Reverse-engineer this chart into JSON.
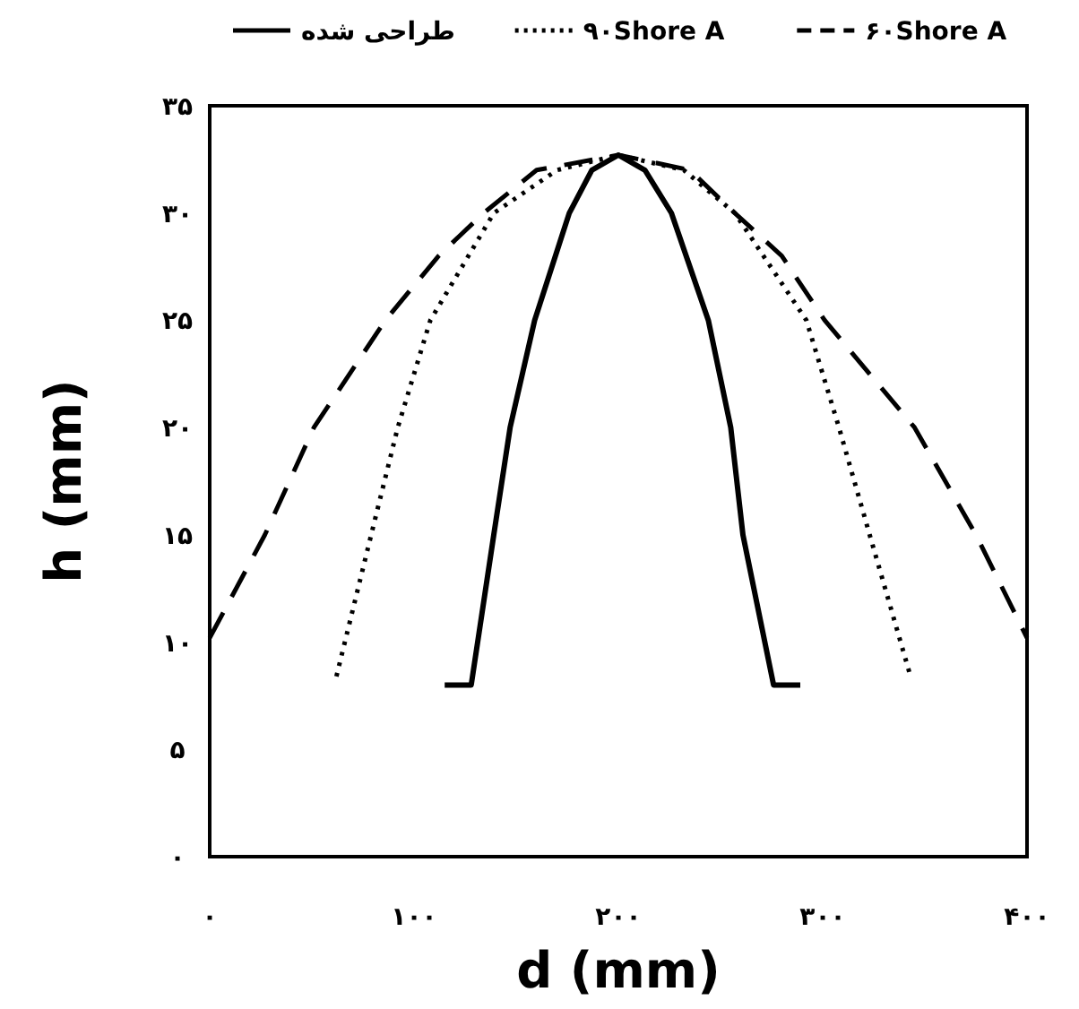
{
  "chart_data": {
    "type": "line",
    "xlabel": "d (mm)",
    "ylabel": "h (mm)",
    "xlim": [
      0,
      400
    ],
    "ylim": [
      0,
      35
    ],
    "xticks": [
      {
        "value": 0,
        "label": "۰"
      },
      {
        "value": 100,
        "label": "۱۰۰"
      },
      {
        "value": 200,
        "label": "۲۰۰"
      },
      {
        "value": 300,
        "label": "۳۰۰"
      },
      {
        "value": 400,
        "label": "۴۰۰"
      }
    ],
    "yticks": [
      {
        "value": 0,
        "label": "۰"
      },
      {
        "value": 5,
        "label": "۵"
      },
      {
        "value": 10,
        "label": "۱۰"
      },
      {
        "value": 15,
        "label": "۱۵"
      },
      {
        "value": 20,
        "label": "۲۰"
      },
      {
        "value": 25,
        "label": "۲۵"
      },
      {
        "value": 30,
        "label": "۳۰"
      },
      {
        "value": 35,
        "label": "۳۵"
      }
    ],
    "grid": false,
    "legend": "top",
    "marker": "none",
    "series": [
      {
        "name": "طراحی شده",
        "color": "#000000",
        "line_style": "solid",
        "x": [
          115,
          128,
          139,
          147,
          159,
          176,
          187,
          200,
          213,
          226,
          244,
          255,
          261,
          276,
          289
        ],
        "values": [
          8,
          8,
          15,
          20,
          25,
          30,
          32,
          32.7,
          32,
          30,
          25,
          20,
          15,
          8,
          8
        ]
      },
      {
        "name": "۹۰Shore A",
        "color": "#000000",
        "line_style": "dotted",
        "x": [
          62,
          79,
          92,
          108,
          139,
          170,
          200,
          232,
          257,
          292,
          308,
          323,
          343
        ],
        "values": [
          8.4,
          15,
          20,
          25,
          30,
          32,
          32.7,
          32,
          30,
          25,
          20,
          15,
          8.4
        ]
      },
      {
        "name": "۶۰Shore A",
        "color": "#000000",
        "line_style": "dashed",
        "x": [
          0,
          27,
          51,
          86,
          112,
          134,
          160,
          200,
          235,
          257,
          280,
          301,
          345,
          375,
          400
        ],
        "values": [
          10.2,
          15,
          20,
          25,
          28,
          30,
          32,
          32.7,
          32,
          30,
          28,
          25,
          20,
          15,
          10.2
        ]
      }
    ]
  }
}
